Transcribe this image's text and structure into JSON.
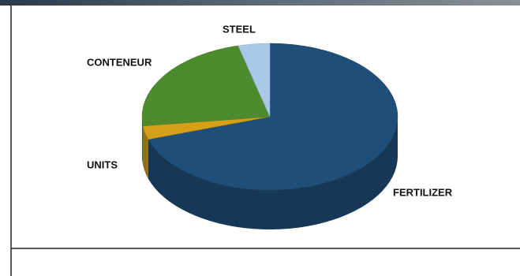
{
  "chart_data": {
    "type": "pie",
    "categories": [
      "FERTILIZER",
      "UNITS",
      "CONTENEUR",
      "STEEL"
    ],
    "values": [
      70,
      3,
      23,
      4
    ],
    "colors": [
      "#1f4e79",
      "#d4a017",
      "#4e8a2e",
      "#a9c8e8"
    ]
  }
}
